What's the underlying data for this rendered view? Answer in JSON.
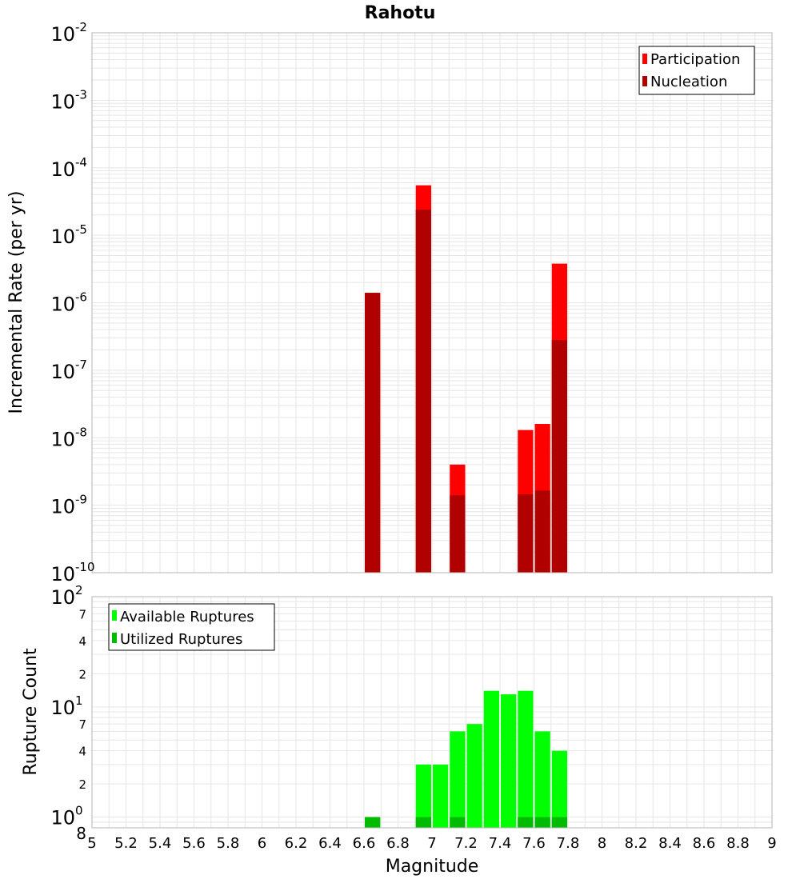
{
  "title": "Rahotu",
  "xlabel": "Magnitude",
  "x_ticks": [
    "5",
    "5.2",
    "5.4",
    "5.6",
    "5.8",
    "6",
    "6.2",
    "6.4",
    "6.6",
    "6.8",
    "7",
    "7.2",
    "7.4",
    "7.6",
    "7.8",
    "8",
    "8.2",
    "8.4",
    "8.6",
    "8.8",
    "9"
  ],
  "top_ylabel": "Incremental Rate (per yr)",
  "bottom_ylabel": "Rupture Count",
  "colors": {
    "participation": "#ff0000",
    "nucleation": "#b00000",
    "available": "#00ff00",
    "utilized": "#00bb00",
    "grid": "#e6e6e6",
    "frame": "#b4b4b4"
  },
  "chart_data": [
    {
      "type": "bar",
      "title": "Rahotu",
      "ylabel": "Incremental Rate (per yr)",
      "xlabel": "Magnitude",
      "yscale": "log",
      "xlim": [
        5,
        9
      ],
      "ylim": [
        1e-10,
        0.01
      ],
      "grid": true,
      "legend": "top-right",
      "y_ticks": [
        {
          "base": "10",
          "exp": "-2"
        },
        {
          "base": "10",
          "exp": "-3"
        },
        {
          "base": "10",
          "exp": "-4"
        },
        {
          "base": "10",
          "exp": "-5"
        },
        {
          "base": "10",
          "exp": "-6"
        },
        {
          "base": "10",
          "exp": "-7"
        },
        {
          "base": "10",
          "exp": "-8"
        },
        {
          "base": "10",
          "exp": "-9"
        },
        {
          "base": "10",
          "exp": "-10"
        }
      ],
      "x": [
        6.65,
        6.95,
        7.15,
        7.55,
        7.65,
        7.75
      ],
      "series": [
        {
          "name": "Participation",
          "values": [
            1.4e-06,
            5.5e-05,
            4e-09,
            1.3e-08,
            1.6e-08,
            3.8e-06
          ]
        },
        {
          "name": "Nucleation",
          "values": [
            1.4e-06,
            2.4e-05,
            1.4e-09,
            1.45e-09,
            1.65e-09,
            2.8e-07
          ]
        }
      ]
    },
    {
      "type": "bar",
      "ylabel": "Rupture Count",
      "xlabel": "Magnitude",
      "yscale": "log",
      "xlim": [
        5,
        9
      ],
      "ylim": [
        0.8,
        100
      ],
      "grid": true,
      "legend": "top-left",
      "y_ticks": [
        {
          "label": "10",
          "exp": "2"
        },
        {
          "label": "7",
          "exp": ""
        },
        {
          "label": "4",
          "exp": ""
        },
        {
          "label": "2",
          "exp": ""
        },
        {
          "label": "10",
          "exp": "1"
        },
        {
          "label": "7",
          "exp": ""
        },
        {
          "label": "4",
          "exp": ""
        },
        {
          "label": "2",
          "exp": ""
        },
        {
          "label": "10",
          "exp": "0"
        },
        {
          "label": "8",
          "exp": ""
        }
      ],
      "x": [
        6.65,
        6.95,
        7.05,
        7.15,
        7.25,
        7.35,
        7.45,
        7.55,
        7.65,
        7.75
      ],
      "series": [
        {
          "name": "Available Ruptures",
          "values": [
            1,
            3,
            3,
            6,
            7,
            14,
            13,
            14,
            6,
            4
          ]
        },
        {
          "name": "Utilized Ruptures",
          "values": [
            1,
            1,
            0,
            1,
            0,
            0,
            0,
            1,
            1,
            1
          ]
        }
      ]
    }
  ]
}
